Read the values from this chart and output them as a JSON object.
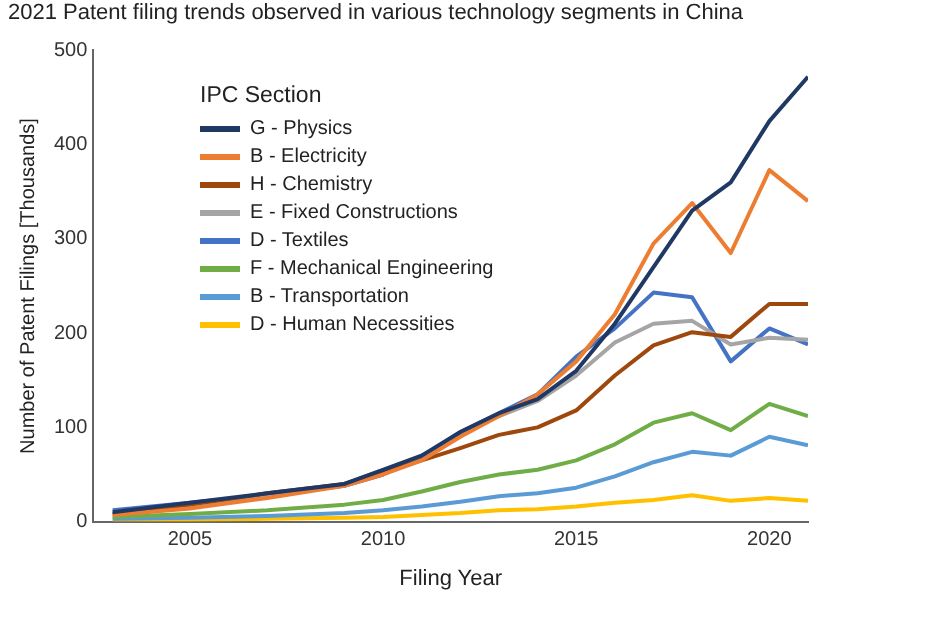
{
  "chart_data": {
    "type": "line",
    "title": "2021 Patent filing trends observed in various technology segments in China",
    "xlabel": "Filing Year",
    "ylabel": "Number of Patent Filings [Thousands]",
    "legend_title": "IPC Section",
    "legend": "top left",
    "marker": "none",
    "grid": false,
    "x": [
      2003,
      2005,
      2007,
      2009,
      2010,
      2011,
      2012,
      2013,
      2014,
      2015,
      2016,
      2017,
      2018,
      2019,
      2020,
      2021
    ],
    "xlim": [
      2002.5,
      2021
    ],
    "xticks": [
      2005,
      2010,
      2015,
      2020
    ],
    "ylim": [
      0,
      500
    ],
    "yticks": [
      0,
      100,
      200,
      300,
      400,
      500
    ],
    "series": [
      {
        "name": "G - Physics",
        "color": "#1f3864",
        "values": [
          10,
          20,
          30,
          40,
          55,
          70,
          95,
          115,
          130,
          160,
          210,
          270,
          330,
          360,
          425,
          472
        ]
      },
      {
        "name": "B - Electricity",
        "color": "#ed7d31",
        "values": [
          7,
          14,
          25,
          38,
          50,
          65,
          90,
          112,
          135,
          170,
          220,
          295,
          338,
          285,
          373,
          340
        ]
      },
      {
        "name": "H - Chemistry",
        "color": "#9e480e",
        "values": [
          8,
          18,
          30,
          40,
          52,
          65,
          78,
          92,
          100,
          118,
          155,
          187,
          201,
          196,
          231,
          231
        ]
      },
      {
        "name": "E - Fixed Constructions",
        "color": "#a5a5a5",
        "values": [
          8,
          17,
          28,
          40,
          55,
          70,
          92,
          112,
          128,
          155,
          190,
          210,
          213,
          188,
          195,
          193
        ]
      },
      {
        "name": "D - Textiles",
        "color": "#4472c4",
        "values": [
          12,
          20,
          28,
          38,
          50,
          68,
          95,
          115,
          135,
          175,
          205,
          243,
          238,
          170,
          205,
          188
        ]
      },
      {
        "name": "F - Mechanical Engineering",
        "color": "#70ad47",
        "values": [
          5,
          8,
          12,
          18,
          23,
          32,
          42,
          50,
          55,
          65,
          82,
          105,
          115,
          97,
          125,
          112
        ]
      },
      {
        "name": "B - Transportation",
        "color": "#5b9bd5",
        "values": [
          3,
          4,
          6,
          9,
          12,
          16,
          21,
          27,
          30,
          36,
          48,
          63,
          74,
          70,
          90,
          81
        ]
      },
      {
        "name": "D - Human Necessities",
        "color": "#ffc000",
        "values": [
          2,
          2,
          3,
          4,
          5,
          7,
          9,
          12,
          13,
          16,
          20,
          23,
          28,
          22,
          25,
          22
        ]
      }
    ]
  }
}
